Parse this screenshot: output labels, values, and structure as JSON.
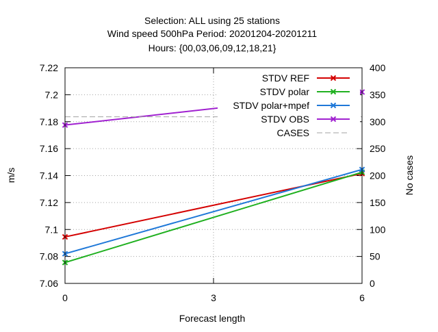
{
  "title_lines": [
    "Selection: ALL using    25 stations",
    "Wind speed 500hPa   Period: 20201204-20201211",
    "Hours: {00,03,06,09,12,18,21}"
  ],
  "chart_data": {
    "type": "line",
    "xlabel": "Forecast length",
    "ylabel": "m/s",
    "y2label": "No cases",
    "x": [
      0,
      3,
      6
    ],
    "xticks": [
      "0",
      "3",
      "6"
    ],
    "xlim": [
      0,
      6
    ],
    "ylim": [
      7.06,
      7.22
    ],
    "yticks": [
      "7.06",
      "7.08",
      "7.1",
      "7.12",
      "7.14",
      "7.16",
      "7.18",
      "7.2",
      "7.22"
    ],
    "y2lim": [
      0,
      400
    ],
    "y2ticks": [
      "0",
      "50",
      "100",
      "150",
      "200",
      "250",
      "300",
      "350",
      "400"
    ],
    "grid": true,
    "legend_position": "top-right",
    "series": [
      {
        "name": "STDV REF",
        "color": "#d40000",
        "axis": "left",
        "style": "solid",
        "marker": "x",
        "x": [
          0,
          6
        ],
        "y": [
          7.0945,
          7.1415
        ]
      },
      {
        "name": "STDV polar",
        "color": "#1fb01f",
        "axis": "left",
        "style": "solid",
        "marker": "x",
        "x": [
          0,
          6
        ],
        "y": [
          7.0755,
          7.1425
        ]
      },
      {
        "name": "STDV polar+mpef",
        "color": "#1f78d8",
        "axis": "left",
        "style": "solid",
        "marker": "x",
        "x": [
          0,
          6
        ],
        "y": [
          7.082,
          7.1445
        ]
      },
      {
        "name": "STDV OBS",
        "color": "#a020d0",
        "axis": "left",
        "style": "solid",
        "marker": "x",
        "x": [
          0,
          6
        ],
        "y": [
          7.1775,
          7.202
        ]
      },
      {
        "name": "CASES",
        "color": "#a0a0a0",
        "axis": "right",
        "style": "dashed",
        "marker": "none",
        "x": [
          0,
          6
        ],
        "y": [
          309,
          309
        ]
      }
    ]
  }
}
